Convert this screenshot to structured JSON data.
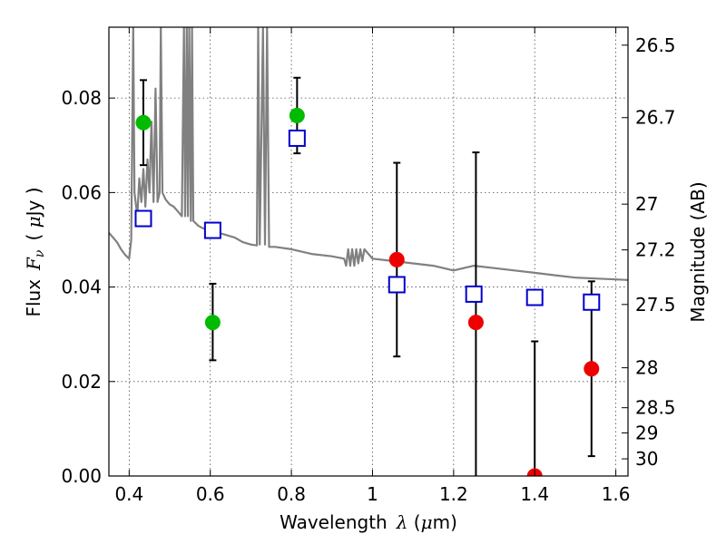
{
  "chart_data": {
    "type": "scatter",
    "title": "",
    "xlabel": {
      "prefix": "Wavelength",
      "symbol": "λ",
      "unit_open": " (",
      "unit_mu": "μ",
      "unit_rest": "m)"
    },
    "ylabel": {
      "prefix": "Flux",
      "symbol": "F",
      "subscript": "ν",
      "unit_open": "( ",
      "unit_mu": "μ",
      "unit_rest": "Jy )"
    },
    "y2label": "Magnitude (AB)",
    "xlim": [
      0.35,
      1.63
    ],
    "ylim": [
      0.0,
      0.095
    ],
    "grid": true,
    "x_ticks": [
      {
        "v": 0.4,
        "label": "0.4"
      },
      {
        "v": 0.6,
        "label": "0.6"
      },
      {
        "v": 0.8,
        "label": "0.8"
      },
      {
        "v": 1.0,
        "label": "1"
      },
      {
        "v": 1.2,
        "label": "1.2"
      },
      {
        "v": 1.4,
        "label": "1.4"
      },
      {
        "v": 1.6,
        "label": "1.6"
      }
    ],
    "y_ticks": [
      {
        "v": 0.0,
        "label": "0.00"
      },
      {
        "v": 0.02,
        "label": "0.02"
      },
      {
        "v": 0.04,
        "label": "0.04"
      },
      {
        "v": 0.06,
        "label": "0.06"
      },
      {
        "v": 0.08,
        "label": "0.08"
      }
    ],
    "y2_ticks": [
      {
        "mag": 26.5,
        "label": "26.5"
      },
      {
        "mag": 26.7,
        "label": "26.7"
      },
      {
        "mag": 27,
        "label": "27"
      },
      {
        "mag": 27.2,
        "label": "27.2"
      },
      {
        "mag": 27.5,
        "label": "27.5"
      },
      {
        "mag": 28,
        "label": "28"
      },
      {
        "mag": 28.5,
        "label": "28.5"
      },
      {
        "mag": 29,
        "label": "29"
      },
      {
        "mag": 30,
        "label": "30"
      }
    ],
    "series": [
      {
        "kind": "model_spectrum",
        "color": "#808080",
        "points": [
          [
            0.35,
            0.0515
          ],
          [
            0.36,
            0.0505
          ],
          [
            0.37,
            0.0495
          ],
          [
            0.38,
            0.048
          ],
          [
            0.39,
            0.0468
          ],
          [
            0.4,
            0.046
          ],
          [
            0.405,
            0.05
          ],
          [
            0.41,
            0.095
          ],
          [
            0.413,
            0.06
          ],
          [
            0.42,
            0.055
          ],
          [
            0.425,
            0.063
          ],
          [
            0.43,
            0.058
          ],
          [
            0.435,
            0.065
          ],
          [
            0.44,
            0.057
          ],
          [
            0.445,
            0.067
          ],
          [
            0.45,
            0.06
          ],
          [
            0.455,
            0.075
          ],
          [
            0.46,
            0.058
          ],
          [
            0.465,
            0.082
          ],
          [
            0.47,
            0.058
          ],
          [
            0.475,
            0.06
          ],
          [
            0.478,
            0.095
          ],
          [
            0.482,
            0.06
          ],
          [
            0.49,
            0.0585
          ],
          [
            0.5,
            0.0575
          ],
          [
            0.51,
            0.057
          ],
          [
            0.52,
            0.056
          ],
          [
            0.53,
            0.055
          ],
          [
            0.535,
            0.095
          ],
          [
            0.538,
            0.055
          ],
          [
            0.542,
            0.095
          ],
          [
            0.545,
            0.055
          ],
          [
            0.548,
            0.095
          ],
          [
            0.552,
            0.054
          ],
          [
            0.555,
            0.095
          ],
          [
            0.558,
            0.054
          ],
          [
            0.57,
            0.053
          ],
          [
            0.58,
            0.0525
          ],
          [
            0.6,
            0.052
          ],
          [
            0.62,
            0.0515
          ],
          [
            0.64,
            0.051
          ],
          [
            0.66,
            0.0505
          ],
          [
            0.68,
            0.0495
          ],
          [
            0.7,
            0.049
          ],
          [
            0.715,
            0.0488
          ],
          [
            0.718,
            0.095
          ],
          [
            0.722,
            0.049
          ],
          [
            0.73,
            0.095
          ],
          [
            0.735,
            0.049
          ],
          [
            0.74,
            0.095
          ],
          [
            0.745,
            0.0485
          ],
          [
            0.76,
            0.0485
          ],
          [
            0.8,
            0.048
          ],
          [
            0.85,
            0.047
          ],
          [
            0.9,
            0.0465
          ],
          [
            0.93,
            0.046
          ],
          [
            0.935,
            0.0445
          ],
          [
            0.94,
            0.048
          ],
          [
            0.945,
            0.0445
          ],
          [
            0.95,
            0.048
          ],
          [
            0.955,
            0.0445
          ],
          [
            0.96,
            0.048
          ],
          [
            0.965,
            0.045
          ],
          [
            0.97,
            0.048
          ],
          [
            0.975,
            0.0455
          ],
          [
            0.98,
            0.048
          ],
          [
            0.99,
            0.047
          ],
          [
            1.0,
            0.046
          ],
          [
            1.05,
            0.0455
          ],
          [
            1.1,
            0.045
          ],
          [
            1.15,
            0.0445
          ],
          [
            1.2,
            0.0435
          ],
          [
            1.25,
            0.0445
          ],
          [
            1.3,
            0.044
          ],
          [
            1.35,
            0.0435
          ],
          [
            1.4,
            0.043
          ],
          [
            1.45,
            0.0425
          ],
          [
            1.5,
            0.042
          ],
          [
            1.55,
            0.0418
          ],
          [
            1.6,
            0.0416
          ],
          [
            1.63,
            0.0415
          ]
        ]
      },
      {
        "kind": "model_photometry",
        "marker": "open-square",
        "color": "#0000cc",
        "points": [
          {
            "x": 0.435,
            "y": 0.0545
          },
          {
            "x": 0.606,
            "y": 0.052
          },
          {
            "x": 0.814,
            "y": 0.0715
          },
          {
            "x": 1.06,
            "y": 0.0405
          },
          {
            "x": 1.25,
            "y": 0.0385
          },
          {
            "x": 1.4,
            "y": 0.0378
          },
          {
            "x": 1.54,
            "y": 0.0368
          }
        ]
      },
      {
        "kind": "hst_optical",
        "marker": "filled-circle",
        "color": "#00bb00",
        "points": [
          {
            "x": 0.435,
            "y": 0.0748,
            "ylo": 0.0658,
            "yhi": 0.0838
          },
          {
            "x": 0.606,
            "y": 0.0325,
            "ylo": 0.0245,
            "yhi": 0.0407
          },
          {
            "x": 0.814,
            "y": 0.0763,
            "ylo": 0.0683,
            "yhi": 0.0843
          }
        ]
      },
      {
        "kind": "hst_nir",
        "marker": "filled-circle",
        "color": "#ee0000",
        "points": [
          {
            "x": 1.06,
            "y": 0.0458,
            "ylo": 0.0253,
            "yhi": 0.0663
          },
          {
            "x": 1.255,
            "y": 0.0325,
            "ylo": 0.0,
            "yhi": 0.0685
          },
          {
            "x": 1.4,
            "y": 0.0,
            "ylo": 0.0,
            "yhi": 0.0285
          },
          {
            "x": 1.54,
            "y": 0.0227,
            "ylo": 0.0042,
            "yhi": 0.0412
          }
        ]
      }
    ]
  }
}
